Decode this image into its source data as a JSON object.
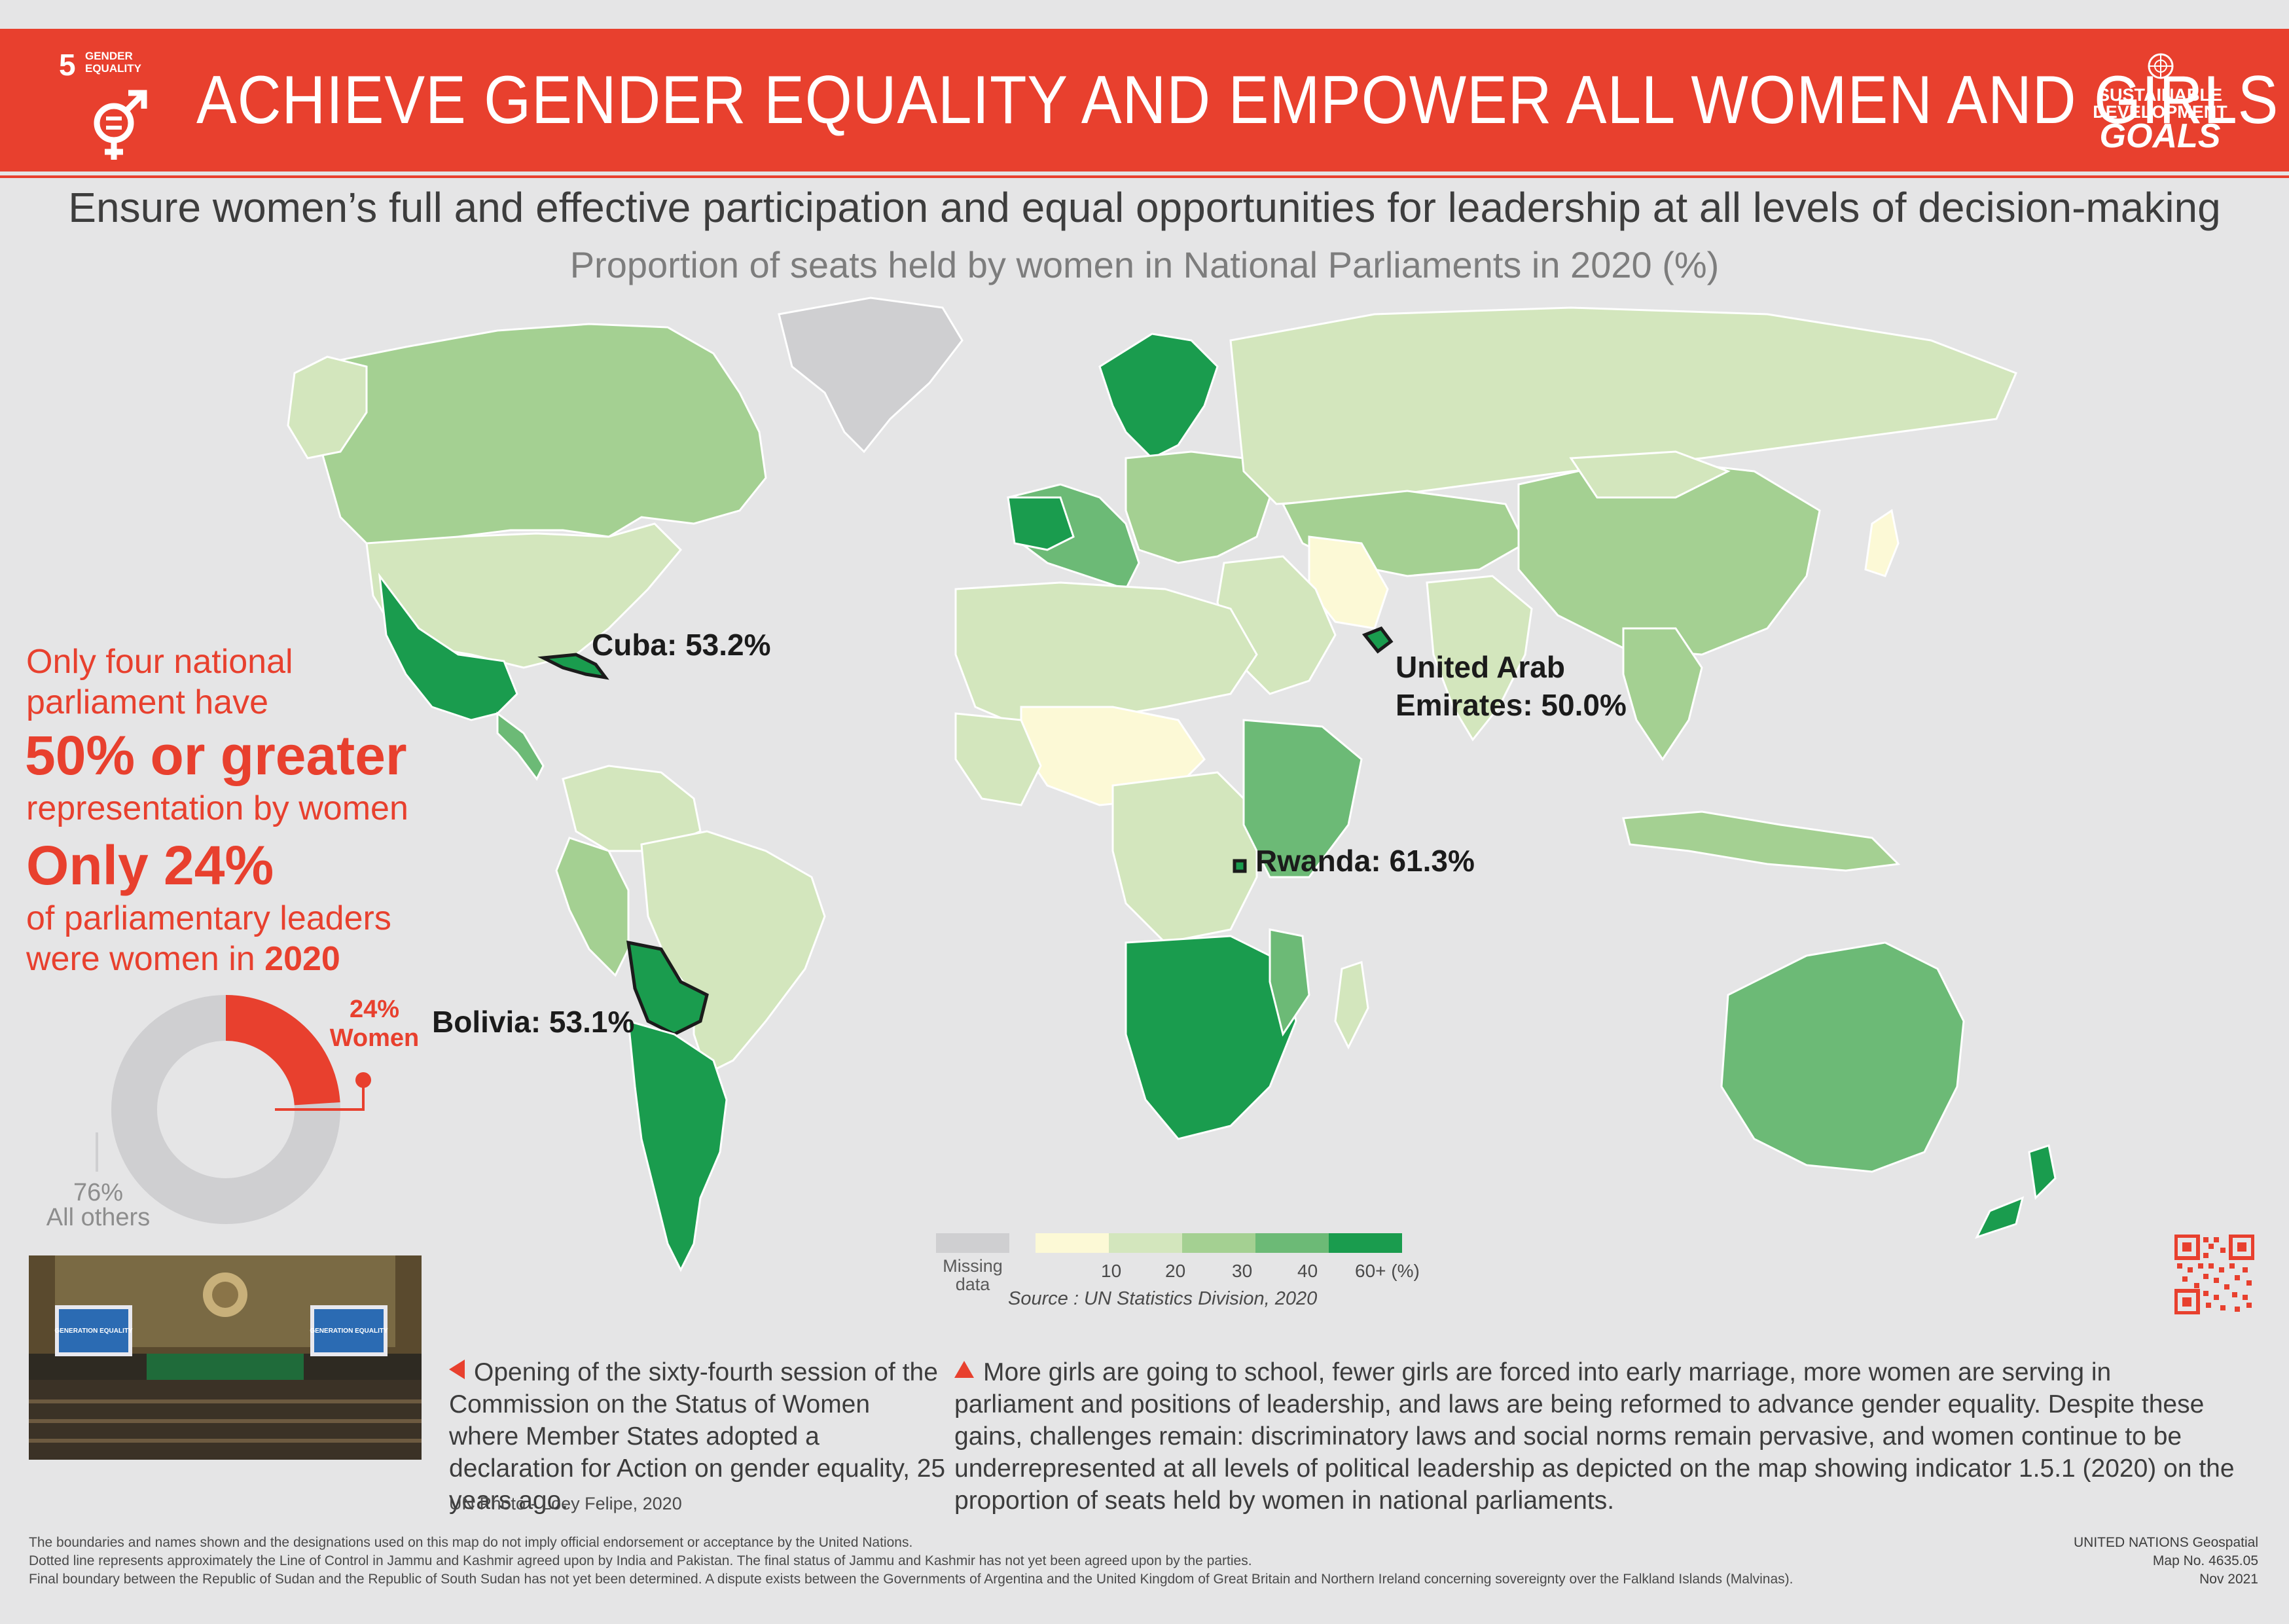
{
  "header": {
    "goal_number": "5",
    "goal_label_line1": "GENDER",
    "goal_label_line2": "EQUALITY",
    "title": "ACHIEVE GENDER EQUALITY AND EMPOWER ALL WOMEN AND GIRLS",
    "sdg_line1": "SUSTAINABLE",
    "sdg_line2": "DEVELOPMENT",
    "sdg_line3": "GOALS",
    "brand_color": "#e8402e"
  },
  "subtitle": "Ensure women’s full and effective participation and equal opportunities for leadership at all levels of decision-making",
  "map_title": "Proportion of seats held by women in National Parliaments in 2020 (%)",
  "callouts": {
    "cuba": "Cuba: 53.2%",
    "uae_line1": "United Arab",
    "uae_line2": "Emirates: 50.0%",
    "rwanda": "Rwanda: 61.3%",
    "bolivia": "Bolivia: 53.1%"
  },
  "stats": {
    "line1": "Only four national",
    "line2": "parliament have",
    "big1": "50% or greater",
    "line3": "representation by women",
    "big2": "Only 24%",
    "line4": "of parliamentary leaders",
    "line5_prefix": "were women in ",
    "line5_year": "2020"
  },
  "donut": {
    "women_pct_label": "24%",
    "women_label": "Women",
    "others_pct_label": "76%",
    "others_label": "All others",
    "women_fraction": 0.24,
    "women_color": "#e8402e",
    "others_color": "#cfcfd1"
  },
  "legend": {
    "missing_line1": "Missing",
    "missing_line2": "data",
    "classes": [
      {
        "label": "10",
        "color": "#fcf9d6"
      },
      {
        "label": "20",
        "color": "#d3e6bd"
      },
      {
        "label": "30",
        "color": "#a4d092"
      },
      {
        "label": "40",
        "color": "#6cba76"
      },
      {
        "label": "60+ (%)",
        "color": "#1a9c4e"
      }
    ],
    "missing_color": "#cfcfd1",
    "source": "Source : UN Statistics Division, 2020"
  },
  "photo": {
    "caption": "Opening of the sixty-fourth session of the Commission on the Status of Women where Member States adopted a declaration for Action on gender equality, 25 years ago.",
    "credit": "UN Photo - Loey Felipe, 2020",
    "screen_text_1": "GENERATION EQUALITY",
    "screen_text_2": "GENERATION EQUALITY"
  },
  "body_text": "More girls are going to school, fewer girls are forced into early marriage, more women are serving in parliament and positions of leadership, and laws are being reformed to advance gender equality. Despite these gains, challenges remain: discriminatory laws and social norms remain pervasive, and women continue to be underrepresented at all levels of political leadership as depicted on the map showing indicator 1.5.1 (2020) on the proportion of seats held by women in national parliaments.",
  "footer": {
    "disclaimer1": "The boundaries and names shown and the designations used on this map do not imply official endorsement or acceptance by the United Nations.",
    "disclaimer2": "Dotted line represents approximately the Line of Control in Jammu and Kashmir agreed upon by India and Pakistan. The final status of Jammu and Kashmir has not yet been agreed upon by the parties.",
    "disclaimer3": "Final boundary between the Republic of Sudan and the Republic of South Sudan has not yet been determined. A dispute exists between the Governments of Argentina and the United Kingdom of Great Britain and Northern Ireland concerning sovereignty over the Falkland Islands (Malvinas).",
    "org": "UNITED NATIONS Geospatial",
    "map_no": "Map No. 4635.05",
    "date": "Nov 2021"
  }
}
